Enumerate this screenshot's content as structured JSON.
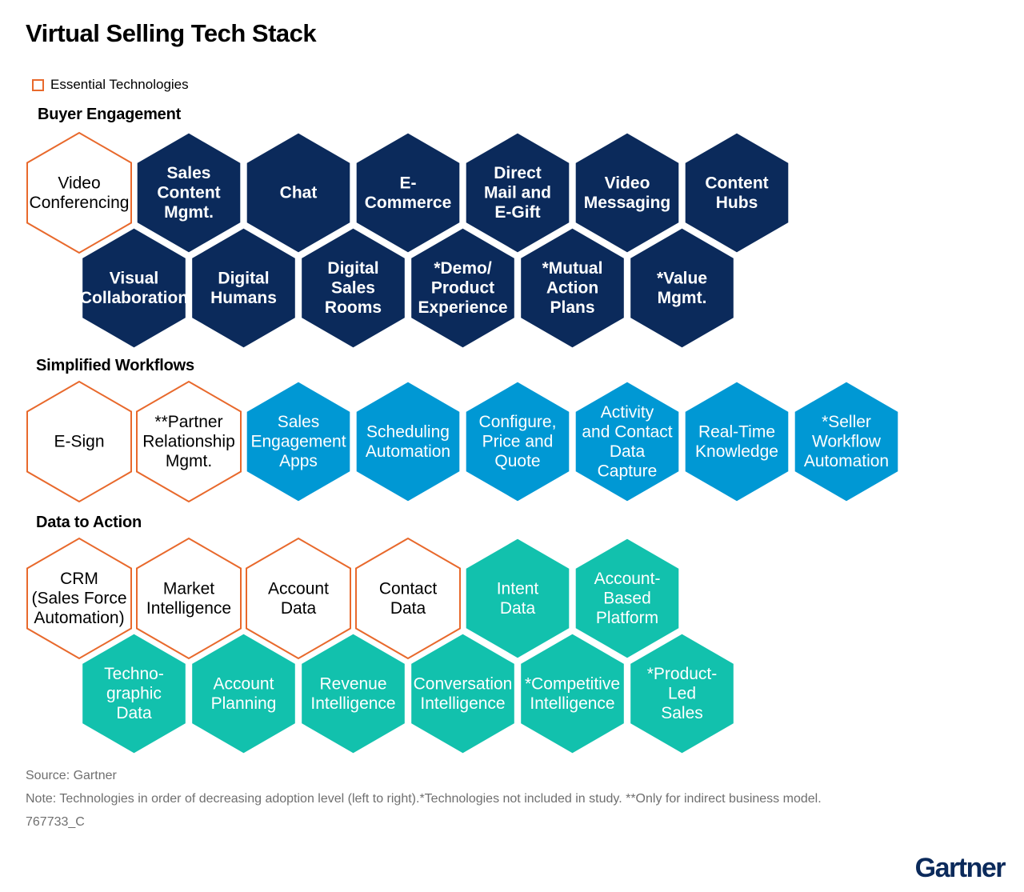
{
  "title": "Virtual Selling Tech Stack",
  "legend": {
    "label": "Essential Technologies"
  },
  "colors": {
    "essential_outline": "#e8692c",
    "buyer_engagement": "#0b2a5b",
    "simplified_workflows": "#0098d4",
    "data_to_action": "#12c1ad"
  },
  "sections": [
    {
      "title": "Buyer Engagement",
      "color_key": "buyer_engagement",
      "rows": [
        [
          {
            "lines": [
              "Video",
              "Conferencing"
            ],
            "essential": true
          },
          {
            "lines": [
              "Sales",
              "Content",
              "Mgmt."
            ],
            "essential": false
          },
          {
            "lines": [
              "Chat"
            ],
            "essential": false
          },
          {
            "lines": [
              "E-",
              "Commerce"
            ],
            "essential": false
          },
          {
            "lines": [
              "Direct",
              "Mail and",
              "E-Gift"
            ],
            "essential": false
          },
          {
            "lines": [
              "Video",
              "Messaging"
            ],
            "essential": false
          },
          {
            "lines": [
              "Content",
              "Hubs"
            ],
            "essential": false
          }
        ],
        [
          {
            "lines": [
              "Visual",
              "Collaboration"
            ],
            "essential": false
          },
          {
            "lines": [
              "Digital",
              "Humans"
            ],
            "essential": false
          },
          {
            "lines": [
              "Digital",
              "Sales",
              "Rooms"
            ],
            "essential": false
          },
          {
            "lines": [
              "*Demo/",
              "Product",
              "Experience"
            ],
            "essential": false
          },
          {
            "lines": [
              "*Mutual",
              "Action",
              "Plans"
            ],
            "essential": false
          },
          {
            "lines": [
              "*Value",
              "Mgmt."
            ],
            "essential": false
          }
        ]
      ]
    },
    {
      "title": "Simplified Workflows",
      "color_key": "simplified_workflows",
      "rows": [
        [
          {
            "lines": [
              "E-Sign"
            ],
            "essential": true
          },
          {
            "lines": [
              "**Partner",
              "Relationship",
              "Mgmt."
            ],
            "essential": true
          },
          {
            "lines": [
              "Sales",
              "Engagement",
              "Apps"
            ],
            "essential": false
          },
          {
            "lines": [
              "Scheduling",
              "Automation"
            ],
            "essential": false
          },
          {
            "lines": [
              "Configure,",
              "Price and",
              "Quote"
            ],
            "essential": false
          },
          {
            "lines": [
              "Activity",
              "and Contact",
              "Data",
              "Capture"
            ],
            "essential": false
          },
          {
            "lines": [
              "Real-Time",
              "Knowledge"
            ],
            "essential": false
          },
          {
            "lines": [
              "*Seller",
              "Workflow",
              "Automation"
            ],
            "essential": false
          }
        ]
      ]
    },
    {
      "title": "Data to Action",
      "color_key": "data_to_action",
      "rows": [
        [
          {
            "lines": [
              "CRM",
              "(Sales Force",
              "Automation)"
            ],
            "essential": true
          },
          {
            "lines": [
              "Market",
              "Intelligence"
            ],
            "essential": true
          },
          {
            "lines": [
              "Account",
              "Data"
            ],
            "essential": true
          },
          {
            "lines": [
              "Contact",
              "Data"
            ],
            "essential": true
          },
          {
            "lines": [
              "Intent",
              "Data"
            ],
            "essential": false
          },
          {
            "lines": [
              "Account-",
              "Based",
              "Platform"
            ],
            "essential": false
          }
        ],
        [
          {
            "lines": [
              "Techno-",
              "graphic",
              "Data"
            ],
            "essential": false
          },
          {
            "lines": [
              "Account",
              "Planning"
            ],
            "essential": false
          },
          {
            "lines": [
              "Revenue",
              "Intelligence"
            ],
            "essential": false
          },
          {
            "lines": [
              "Conversation",
              "Intelligence"
            ],
            "essential": false
          },
          {
            "lines": [
              "*Competitive",
              "Intelligence"
            ],
            "essential": false
          },
          {
            "lines": [
              "*Product-",
              "Led",
              "Sales"
            ],
            "essential": false
          }
        ]
      ]
    }
  ],
  "footer": {
    "source": "Source: Gartner",
    "note": "Note: Technologies in order of decreasing adoption level (left to right).*Technologies not included in study. **Only for indirect business model.",
    "code": "767733_C"
  },
  "logo": "Gartner"
}
